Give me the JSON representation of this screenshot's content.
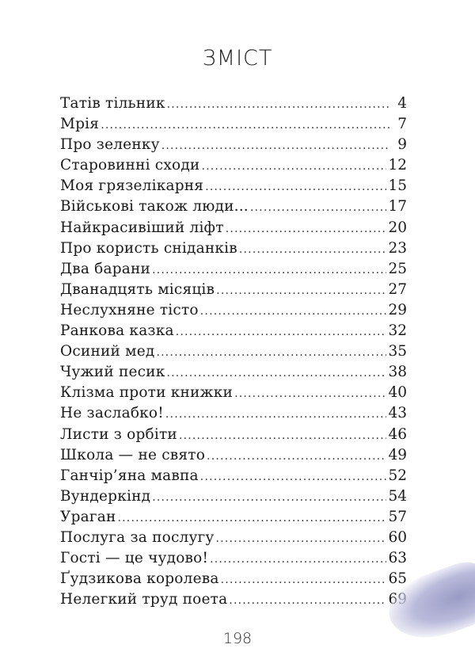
{
  "title": "ЗМІСТ",
  "entries": [
    {
      "title": "Татів тільник",
      "page": "4"
    },
    {
      "title": "Мрія",
      "page": "7"
    },
    {
      "title": "Про зеленку",
      "page": "9"
    },
    {
      "title": "Старовинні сходи",
      "page": "12"
    },
    {
      "title": "Моя грязелікарня",
      "page": "15"
    },
    {
      "title": "Військові також люди...",
      "page": "17"
    },
    {
      "title": "Найкрасивіший ліфт",
      "page": "20"
    },
    {
      "title": "Про користь сніданків",
      "page": "23"
    },
    {
      "title": "Два барани",
      "page": "25"
    },
    {
      "title": "Дванадцять місяців",
      "page": "27"
    },
    {
      "title": "Неслухняне тісто",
      "page": "29"
    },
    {
      "title": "Ранкова казка",
      "page": "32"
    },
    {
      "title": "Осиний мед",
      "page": "35"
    },
    {
      "title": "Чужий песик",
      "page": "38"
    },
    {
      "title": "Клізма проти книжки",
      "page": "40"
    },
    {
      "title": "Не заслабко!",
      "page": "43"
    },
    {
      "title": "Листи з орбіти",
      "page": "46"
    },
    {
      "title": "Школа — не свято",
      "page": "49"
    },
    {
      "title": "Ганчір’яна мавпа",
      "page": "52"
    },
    {
      "title": "Вундеркінд",
      "page": "54"
    },
    {
      "title": "Ураган",
      "page": "57"
    },
    {
      "title": "Послуга за послугу",
      "page": "60"
    },
    {
      "title": "Гості — це чудово!",
      "page": "63"
    },
    {
      "title": "Ґудзикова королева",
      "page": "65"
    },
    {
      "title": "Нелегкий труд поета",
      "page": "69"
    }
  ],
  "page_number": "198"
}
